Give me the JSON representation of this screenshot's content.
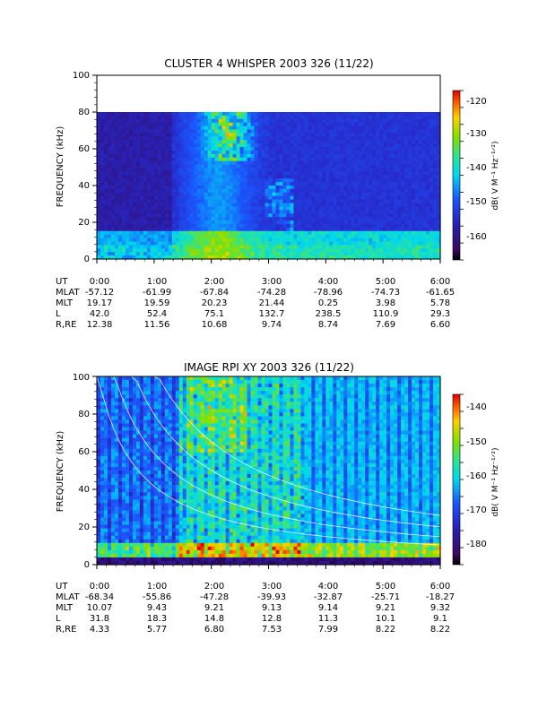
{
  "chart_data": [
    {
      "type": "heatmap",
      "title": "CLUSTER 4 WHISPER 2003 326 (11/22)",
      "ylabel": "FREQUENCY (kHz)",
      "ylim": [
        0,
        100
      ],
      "yticks": [
        "0",
        "20",
        "40",
        "60",
        "80",
        "100"
      ],
      "data_top_khz": 80,
      "xlim_hours": [
        0,
        6
      ],
      "colorbar": {
        "label": "dB( V M⁻¹ Hz⁻¹ᐟ²)",
        "range": [
          -167,
          -118
        ],
        "ticks": [
          "-120",
          "-130",
          "-140",
          "-150",
          "-160"
        ]
      },
      "ephemeris": {
        "labels": [
          "UT",
          "MLAT",
          "MLT",
          "L",
          "R,RE"
        ],
        "columns": [
          [
            "0:00",
            "-57.12",
            "19.17",
            "42.0",
            "12.38"
          ],
          [
            "1:00",
            "-61.99",
            "19.59",
            "52.4",
            "11.56"
          ],
          [
            "2:00",
            "-67.84",
            "20.23",
            "75.1",
            "10.68"
          ],
          [
            "3:00",
            "-74.28",
            "21.44",
            "132.7",
            "9.74"
          ],
          [
            "4:00",
            "-78.96",
            "0.25",
            "238.5",
            "8.74"
          ],
          [
            "5:00",
            "-74.73",
            "3.98",
            "110.9",
            "7.69"
          ],
          [
            "6:00",
            "-61.65",
            "5.78",
            "29.3",
            "6.60"
          ]
        ]
      }
    },
    {
      "type": "heatmap",
      "title": "IMAGE RPI XY 2003 326 (11/22)",
      "ylabel": "FREQUENCY (kHz)",
      "ylim": [
        0,
        100
      ],
      "yticks": [
        "0",
        "20",
        "40",
        "60",
        "80",
        "100"
      ],
      "xlim_hours": [
        0,
        6
      ],
      "colorbar": {
        "label": "dB( V M⁻¹ Hz⁻¹ᐟ²)",
        "range": [
          -185,
          -135
        ],
        "ticks": [
          "-140",
          "-150",
          "-160",
          "-170",
          "-180"
        ]
      },
      "ephemeris": {
        "labels": [
          "UT",
          "MLAT",
          "MLT",
          "L",
          "R,RE"
        ],
        "columns": [
          [
            "0:00",
            "-68.34",
            "10.07",
            "31.8",
            "4.33"
          ],
          [
            "1:00",
            "-55.86",
            "9.43",
            "18.3",
            "5.77"
          ],
          [
            "2:00",
            "-47.28",
            "9.21",
            "14.8",
            "6.80"
          ],
          [
            "3:00",
            "-39.93",
            "9.13",
            "12.8",
            "7.53"
          ],
          [
            "4:00",
            "-32.87",
            "9.14",
            "11.3",
            "7.99"
          ],
          [
            "5:00",
            "-25.71",
            "9.21",
            "10.1",
            "8.22"
          ],
          [
            "6:00",
            "-18.27",
            "9.32",
            "9.1",
            "8.22"
          ]
        ]
      }
    }
  ]
}
